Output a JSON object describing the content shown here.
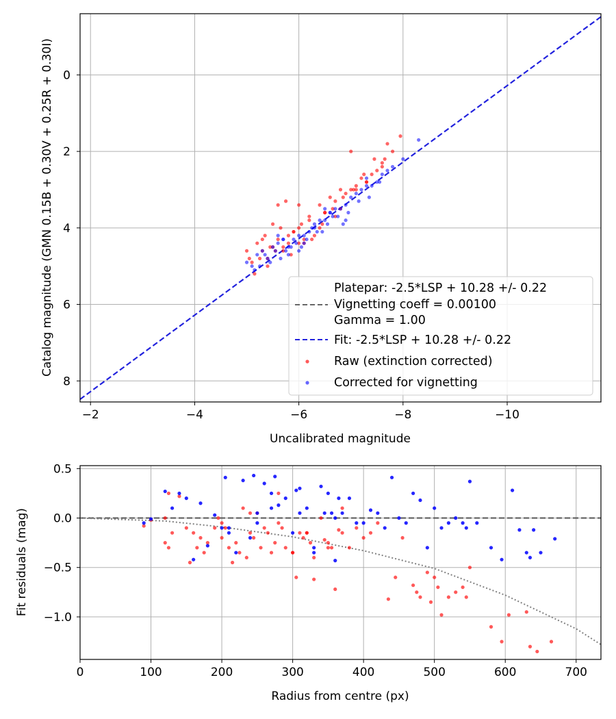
{
  "chart_data": [
    {
      "type": "scatter",
      "id": "magnitude-fit",
      "xlabel": "Uncalibrated magnitude",
      "ylabel": "Catalog magnitude (GMN 0.15B + 0.30V + 0.25R + 0.30I)",
      "xlim": [
        -1.8,
        -11.8
      ],
      "ylim": [
        8.55,
        -1.6
      ],
      "x_inverted": true,
      "y_inverted": true,
      "grid": true,
      "xticks": [
        -2,
        -4,
        -6,
        -8,
        -10
      ],
      "xtick_labels": [
        "−2",
        "−4",
        "−6",
        "−8",
        "−10"
      ],
      "yticks": [
        0,
        2,
        4,
        6,
        8
      ],
      "ytick_labels": [
        "0",
        "2",
        "4",
        "6",
        "8"
      ],
      "legend_position": "lower-right",
      "legend": [
        {
          "kind": "none",
          "label": "Platepar: -2.5*LSP + 10.28 +/- 0.22"
        },
        {
          "kind": "dashed-line",
          "color": "#666666",
          "label": "Vignetting coeff = 0.00100"
        },
        {
          "kind": "none",
          "label": "Gamma = 1.00"
        },
        {
          "kind": "dashed-line",
          "color": "#2222dd",
          "label": "Fit: -2.5*LSP + 10.28 +/- 0.22"
        },
        {
          "kind": "marker",
          "color": "#ff0000",
          "label": "Raw (extinction corrected)"
        },
        {
          "kind": "marker",
          "color": "#0000ff",
          "label": "Corrected for vignetting"
        }
      ],
      "fit_line": {
        "name": "Fit: -2.5*LSP + 10.28 +/- 0.22",
        "x": [
          -1.8,
          -11.8
        ],
        "y": [
          8.48,
          -1.52
        ],
        "color": "#2222dd",
        "style": "dashed"
      },
      "series": [
        {
          "name": "Raw (extinction corrected)",
          "color": "#ff0000",
          "x": [
            -5.0,
            -5.1,
            -5.2,
            -5.3,
            -5.35,
            -5.4,
            -5.5,
            -5.5,
            -5.6,
            -5.7,
            -5.75,
            -5.8,
            -5.9,
            -6.0,
            -6.0,
            -6.1,
            -6.2,
            -6.3,
            -6.4,
            -6.5,
            -6.6,
            -6.7,
            -6.8,
            -6.9,
            -7.0,
            -7.1,
            -7.2,
            -7.3,
            -7.4,
            -7.5,
            -7.6,
            -7.7,
            -7.8,
            -7.95,
            -5.15,
            -5.25,
            -5.45,
            -5.65,
            -5.85,
            -6.05,
            -6.25,
            -6.45,
            -6.65,
            -6.85,
            -7.05,
            -7.25,
            -7.45,
            -7.65,
            -5.05,
            -5.3,
            -5.55,
            -5.8,
            -6.1,
            -6.4,
            -6.7,
            -7.0,
            -7.3,
            -7.6,
            -5.6,
            -5.9,
            -6.2,
            -6.5,
            -6.8,
            -7.1,
            -5.4,
            -5.7,
            -6.0
          ],
          "y": [
            4.6,
            4.9,
            4.4,
            4.6,
            4.2,
            5.0,
            4.5,
            3.9,
            4.3,
            4.6,
            3.3,
            4.4,
            4.1,
            4.0,
            3.4,
            4.4,
            3.7,
            4.2,
            3.4,
            3.6,
            3.2,
            3.7,
            3.0,
            3.1,
            2.0,
            2.9,
            2.7,
            2.8,
            2.6,
            2.5,
            2.4,
            1.8,
            2.0,
            1.6,
            5.2,
            4.8,
            4.5,
            4.0,
            4.7,
            3.9,
            4.3,
            3.9,
            3.5,
            3.2,
            3.0,
            2.6,
            2.2,
            2.2,
            4.8,
            4.3,
            4.6,
            4.2,
            4.3,
            4.0,
            3.3,
            3.0,
            2.8,
            2.3,
            3.4,
            4.1,
            3.8,
            3.6,
            3.5,
            3.0,
            4.8,
            4.5,
            4.4
          ]
        },
        {
          "name": "Corrected for vignetting",
          "color": "#0000ff",
          "x": [
            -5.0,
            -5.1,
            -5.2,
            -5.3,
            -5.4,
            -5.5,
            -5.6,
            -5.7,
            -5.8,
            -5.9,
            -6.0,
            -6.1,
            -6.2,
            -6.3,
            -6.4,
            -6.5,
            -6.6,
            -6.7,
            -6.8,
            -6.9,
            -7.0,
            -7.1,
            -7.2,
            -7.3,
            -7.4,
            -7.5,
            -7.6,
            -7.7,
            -7.8,
            -8.0,
            -8.3,
            -5.15,
            -5.35,
            -5.55,
            -5.75,
            -5.95,
            -6.15,
            -6.35,
            -6.55,
            -6.75,
            -6.95,
            -7.15,
            -7.35,
            -7.55,
            -5.25,
            -5.45,
            -5.65,
            -5.85,
            -6.05,
            -6.25,
            -6.45,
            -6.65,
            -6.85,
            -5.6,
            -5.8,
            -6.0,
            -6.3,
            -6.6,
            -5.7,
            -6.1,
            -6.5,
            -6.9,
            -7.3
          ],
          "y": [
            4.9,
            5.0,
            4.7,
            4.6,
            4.8,
            4.5,
            4.4,
            4.3,
            4.5,
            4.3,
            4.2,
            4.2,
            4.1,
            3.9,
            3.8,
            3.8,
            3.6,
            3.5,
            3.5,
            3.4,
            3.2,
            3.1,
            3.0,
            2.9,
            2.9,
            2.8,
            2.6,
            2.5,
            2.4,
            2.2,
            1.7,
            5.1,
            4.7,
            4.6,
            4.6,
            4.4,
            4.3,
            4.1,
            3.9,
            3.7,
            3.6,
            3.3,
            3.2,
            2.8,
            5.0,
            4.9,
            4.8,
            4.5,
            4.5,
            4.0,
            4.1,
            3.7,
            3.9,
            4.2,
            4.7,
            4.6,
            4.0,
            3.6,
            4.3,
            4.4,
            3.5,
            3.8,
            2.7
          ]
        }
      ]
    },
    {
      "type": "scatter",
      "id": "residuals",
      "xlabel": "Radius from centre (px)",
      "ylabel": "Fit residuals (mag)",
      "xlim": [
        0,
        735
      ],
      "ylim": [
        -1.43,
        0.53
      ],
      "grid": true,
      "xticks": [
        0,
        100,
        200,
        300,
        400,
        500,
        600,
        700
      ],
      "xtick_labels": [
        "0",
        "100",
        "200",
        "300",
        "400",
        "500",
        "600",
        "700"
      ],
      "yticks": [
        0.5,
        0.0,
        -0.5,
        -1.0
      ],
      "ytick_labels": [
        "0.5",
        "0.0",
        "−0.5",
        "−1.0"
      ],
      "zero_line": {
        "y": 0,
        "color": "#555555",
        "style": "dashed"
      },
      "vignetting_curve": {
        "r": [
          0,
          120,
          200,
          300,
          400,
          500,
          600,
          700,
          735
        ],
        "y": [
          0,
          -0.03,
          -0.09,
          -0.19,
          -0.33,
          -0.51,
          -0.78,
          -1.12,
          -1.28
        ],
        "color": "#808080",
        "style": "dotted"
      },
      "series": [
        {
          "name": "Raw residuals",
          "color": "#ff0000",
          "x": [
            90,
            100,
            120,
            125,
            125,
            130,
            140,
            150,
            155,
            160,
            165,
            170,
            175,
            180,
            190,
            195,
            200,
            205,
            210,
            215,
            220,
            225,
            230,
            235,
            240,
            245,
            250,
            255,
            260,
            265,
            270,
            275,
            280,
            285,
            290,
            300,
            305,
            310,
            315,
            320,
            325,
            330,
            340,
            345,
            350,
            355,
            360,
            365,
            370,
            380,
            390,
            400,
            410,
            420,
            435,
            445,
            455,
            470,
            475,
            480,
            490,
            495,
            500,
            505,
            510,
            520,
            530,
            540,
            545,
            550,
            580,
            595,
            605,
            630,
            635,
            645,
            665,
            320,
            350,
            280,
            240,
            330,
            370,
            120,
            200,
            300
          ],
          "y": [
            -0.08,
            -0.02,
            0.0,
            0.25,
            -0.3,
            -0.15,
            0.22,
            -0.1,
            -0.45,
            -0.15,
            -0.3,
            -0.2,
            -0.35,
            -0.25,
            -0.1,
            0.0,
            -0.2,
            -0.1,
            -0.3,
            -0.45,
            -0.25,
            -0.35,
            0.1,
            -0.4,
            -0.15,
            -0.2,
            0.05,
            -0.3,
            -0.1,
            -0.15,
            -0.35,
            -0.25,
            -0.05,
            -0.1,
            -0.3,
            -0.35,
            -0.6,
            -0.15,
            -0.2,
            -0.15,
            -0.25,
            -0.62,
            0.0,
            -0.22,
            -0.3,
            -0.3,
            -0.72,
            -0.12,
            -0.15,
            -0.3,
            -0.1,
            -0.2,
            -0.15,
            -0.05,
            -0.82,
            -0.6,
            -0.2,
            -0.68,
            -0.75,
            -0.8,
            -0.55,
            -0.85,
            -0.6,
            -0.7,
            -0.98,
            -0.8,
            -0.75,
            -0.7,
            -0.8,
            -0.5,
            -1.1,
            -1.25,
            -0.98,
            -0.95,
            -1.3,
            -1.35,
            -1.25,
            -0.15,
            -0.25,
            0.25,
            0.05,
            -0.4,
            0.1,
            -0.25,
            -0.05,
            -0.35
          ],
          "y_visible": true
        },
        {
          "name": "Corrected residuals",
          "color": "#0000ff",
          "x": [
            90,
            100,
            120,
            130,
            140,
            150,
            160,
            170,
            180,
            190,
            200,
            205,
            210,
            220,
            230,
            240,
            245,
            250,
            260,
            270,
            275,
            280,
            290,
            300,
            305,
            310,
            320,
            330,
            340,
            345,
            350,
            355,
            360,
            365,
            370,
            380,
            390,
            400,
            410,
            420,
            430,
            440,
            450,
            460,
            470,
            480,
            490,
            500,
            510,
            520,
            530,
            540,
            545,
            550,
            560,
            580,
            595,
            610,
            620,
            630,
            635,
            640,
            650,
            670,
            330,
            270,
            360,
            250,
            210,
            310
          ],
          "y": [
            -0.05,
            -0.01,
            0.27,
            0.1,
            0.25,
            0.2,
            -0.42,
            0.15,
            -0.28,
            0.03,
            -0.1,
            0.41,
            -0.15,
            -0.35,
            0.38,
            -0.2,
            0.43,
            -0.05,
            0.35,
            0.1,
            0.42,
            0.13,
            0.2,
            -0.15,
            0.28,
            0.05,
            0.1,
            -0.35,
            0.32,
            0.05,
            0.25,
            0.05,
            -0.43,
            0.2,
            0.05,
            0.2,
            -0.05,
            -0.05,
            0.08,
            0.05,
            -0.1,
            0.41,
            0.0,
            -0.05,
            0.25,
            0.18,
            -0.3,
            0.1,
            -0.1,
            -0.05,
            0.0,
            -0.05,
            -0.1,
            0.37,
            -0.05,
            -0.3,
            -0.42,
            0.28,
            -0.12,
            -0.35,
            -0.4,
            -0.12,
            -0.35,
            -0.21,
            -0.3,
            0.25,
            0.0,
            0.05,
            -0.1,
            0.3
          ],
          "y_visible": true
        }
      ]
    }
  ]
}
